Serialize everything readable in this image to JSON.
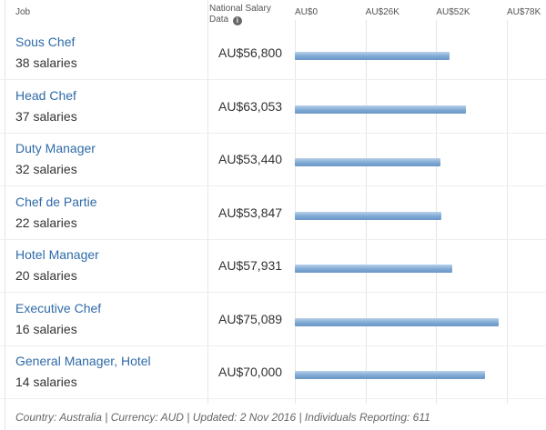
{
  "header": {
    "job_label": "Job",
    "national_label_line1": "National Salary",
    "national_label_line2": "Data",
    "info_glyph": "i"
  },
  "chart_data": {
    "type": "bar",
    "orientation": "horizontal",
    "categories": [
      "Sous Chef",
      "Head Chef",
      "Duty Manager",
      "Chef de Partie",
      "Hotel Manager",
      "Executive Chef",
      "General Manager, Hotel"
    ],
    "values": [
      56800,
      63053,
      53440,
      53847,
      57931,
      75089,
      70000
    ],
    "value_labels": [
      "AU$56,800",
      "AU$63,053",
      "AU$53,440",
      "AU$53,847",
      "AU$57,931",
      "AU$75,089",
      "AU$70,000"
    ],
    "counts": [
      "38 salaries",
      "37 salaries",
      "32 salaries",
      "22 salaries",
      "20 salaries",
      "16 salaries",
      "14 salaries"
    ],
    "ticks": [
      0,
      26000,
      52000,
      78000
    ],
    "tick_labels": [
      "AU$0",
      "AU$26K",
      "AU$52K",
      "AU$78K"
    ],
    "xlim": [
      0,
      78000
    ],
    "grid": true,
    "bar_color": "#7fa8d3"
  },
  "footer": {
    "text": "Country: Australia | Currency: AUD | Updated: 2 Nov 2016 | Individuals Reporting: 611"
  }
}
